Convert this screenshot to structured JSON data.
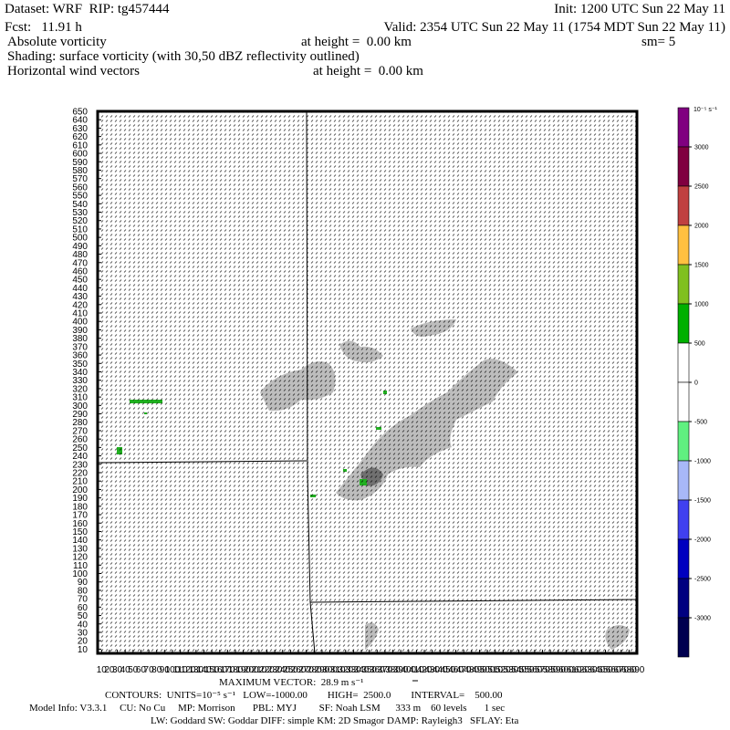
{
  "header": {
    "dataset": "Dataset: WRF  RIP: tg457444",
    "init": "Init: 1200 UTC Sun 22 May 11",
    "fcst": "Fcst:   11.91 h",
    "valid": "Valid: 2354 UTC Sun 22 May 11 (1754 MDT Sun 22 May 11)",
    "field": "Absolute vorticity",
    "field_height": "at height =  0.00 km",
    "smoothing": "sm= 5",
    "shading": "Shading: surface vorticity (with 30,50 dBZ reflectivity outlined)",
    "vectors": "Horizontal wind vectors",
    "vectors_height": "at height =  0.00 km"
  },
  "plot": {
    "xlim": [
      5,
      690
    ],
    "ylim": [
      5,
      650
    ],
    "xticks": [
      10,
      20,
      30,
      40,
      50,
      60,
      70,
      80,
      90,
      100,
      110,
      120,
      130,
      140,
      150,
      160,
      170,
      180,
      190,
      200,
      210,
      220,
      230,
      240,
      250,
      260,
      270,
      280,
      290,
      300,
      310,
      320,
      330,
      340,
      350,
      360,
      370,
      380,
      390,
      400,
      410,
      420,
      430,
      440,
      450,
      460,
      470,
      480,
      490,
      500,
      510,
      520,
      530,
      540,
      550,
      560,
      570,
      580,
      590,
      600,
      610,
      620,
      630,
      640,
      650,
      660,
      670,
      680,
      690
    ],
    "yticks": [
      10,
      20,
      30,
      40,
      50,
      60,
      70,
      80,
      90,
      100,
      110,
      120,
      130,
      140,
      150,
      160,
      170,
      180,
      190,
      200,
      210,
      220,
      230,
      240,
      250,
      260,
      270,
      280,
      290,
      300,
      310,
      320,
      330,
      340,
      350,
      360,
      370,
      380,
      390,
      400,
      410,
      420,
      430,
      440,
      450,
      460,
      470,
      480,
      490,
      500,
      510,
      520,
      530,
      540,
      550,
      560,
      570,
      580,
      590,
      600,
      610,
      620,
      630,
      640,
      650
    ]
  },
  "colorbar": {
    "unit": "10⁻⁵ s⁻¹",
    "range": [
      -3500,
      3500
    ],
    "levels": [
      3000,
      2500,
      2000,
      1500,
      1000,
      500,
      0,
      -500,
      -1000,
      -1500,
      -2000,
      -2500,
      -3000
    ],
    "colors": [
      "#800080",
      "#800040",
      "#c04040",
      "#ffc040",
      "#80c020",
      "#00b000",
      "#ffffff",
      "#ffffff",
      "#60f080",
      "#a8b8f8",
      "#4040f0",
      "#0000c0",
      "#000080",
      "#000050"
    ]
  },
  "footer": {
    "max_vector": "MAXIMUM VECTOR:  28.9 m s⁻¹",
    "contours": "CONTOURS:  UNITS=10⁻⁵ s⁻¹   LOW=-1000.00        HIGH=  2500.0        INTERVAL=    500.00",
    "model_info": "Model Info: V3.3.1     CU: No Cu     MP: Morrison       PBL: MYJ         SF: Noah LSM      333 m    60 levels       1 sec",
    "physics": "LW: Goddard SW: Goddar DIFF: simple KM: 2D Smagor DAMP: Rayleigh3   SFLAY: Eta"
  }
}
